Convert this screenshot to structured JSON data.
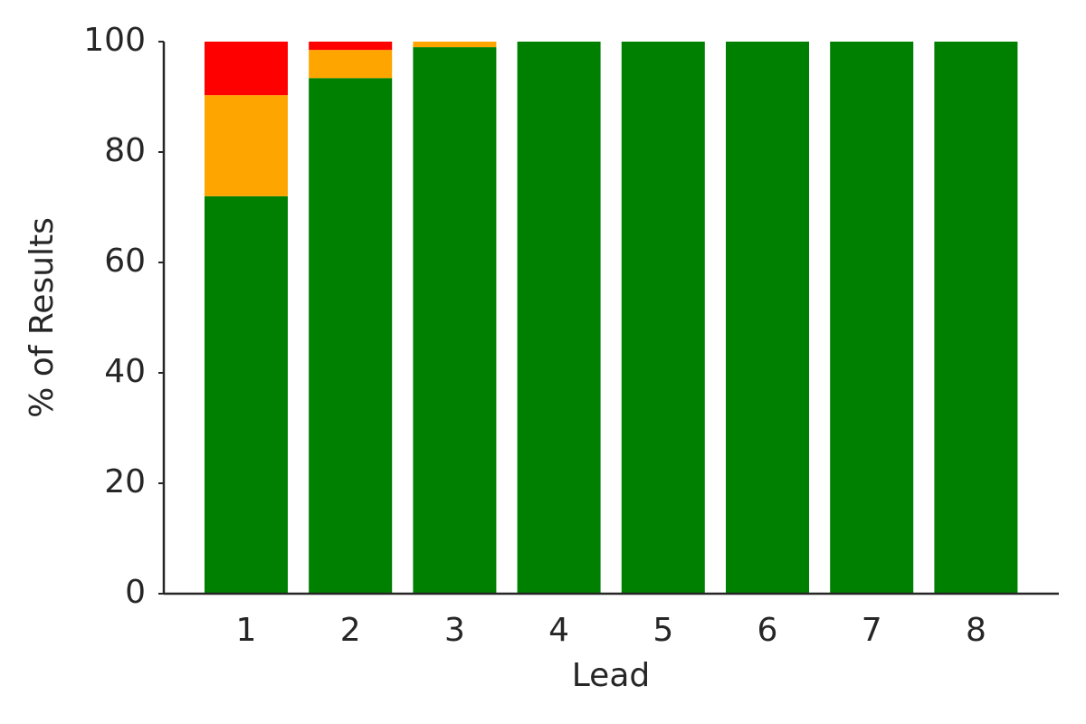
{
  "chart_data": {
    "type": "stacked_bar",
    "x_label": "Lead",
    "y_label": "% of Results",
    "categories": [
      "1",
      "2",
      "3",
      "4",
      "5",
      "6",
      "7",
      "8"
    ],
    "series": [
      {
        "color": "#008000",
        "values": [
          72,
          93.4,
          99,
          100,
          100,
          100,
          100,
          100
        ]
      },
      {
        "color": "#ffa500",
        "values": [
          18.3,
          5.1,
          1,
          0,
          0,
          0,
          0,
          0
        ]
      },
      {
        "color": "#ff0000",
        "values": [
          9.7,
          1.5,
          0,
          0,
          0,
          0,
          0,
          0
        ]
      }
    ],
    "ylim": [
      0,
      100
    ],
    "yticks": [
      0,
      20,
      40,
      60,
      80,
      100
    ],
    "grid": false
  }
}
